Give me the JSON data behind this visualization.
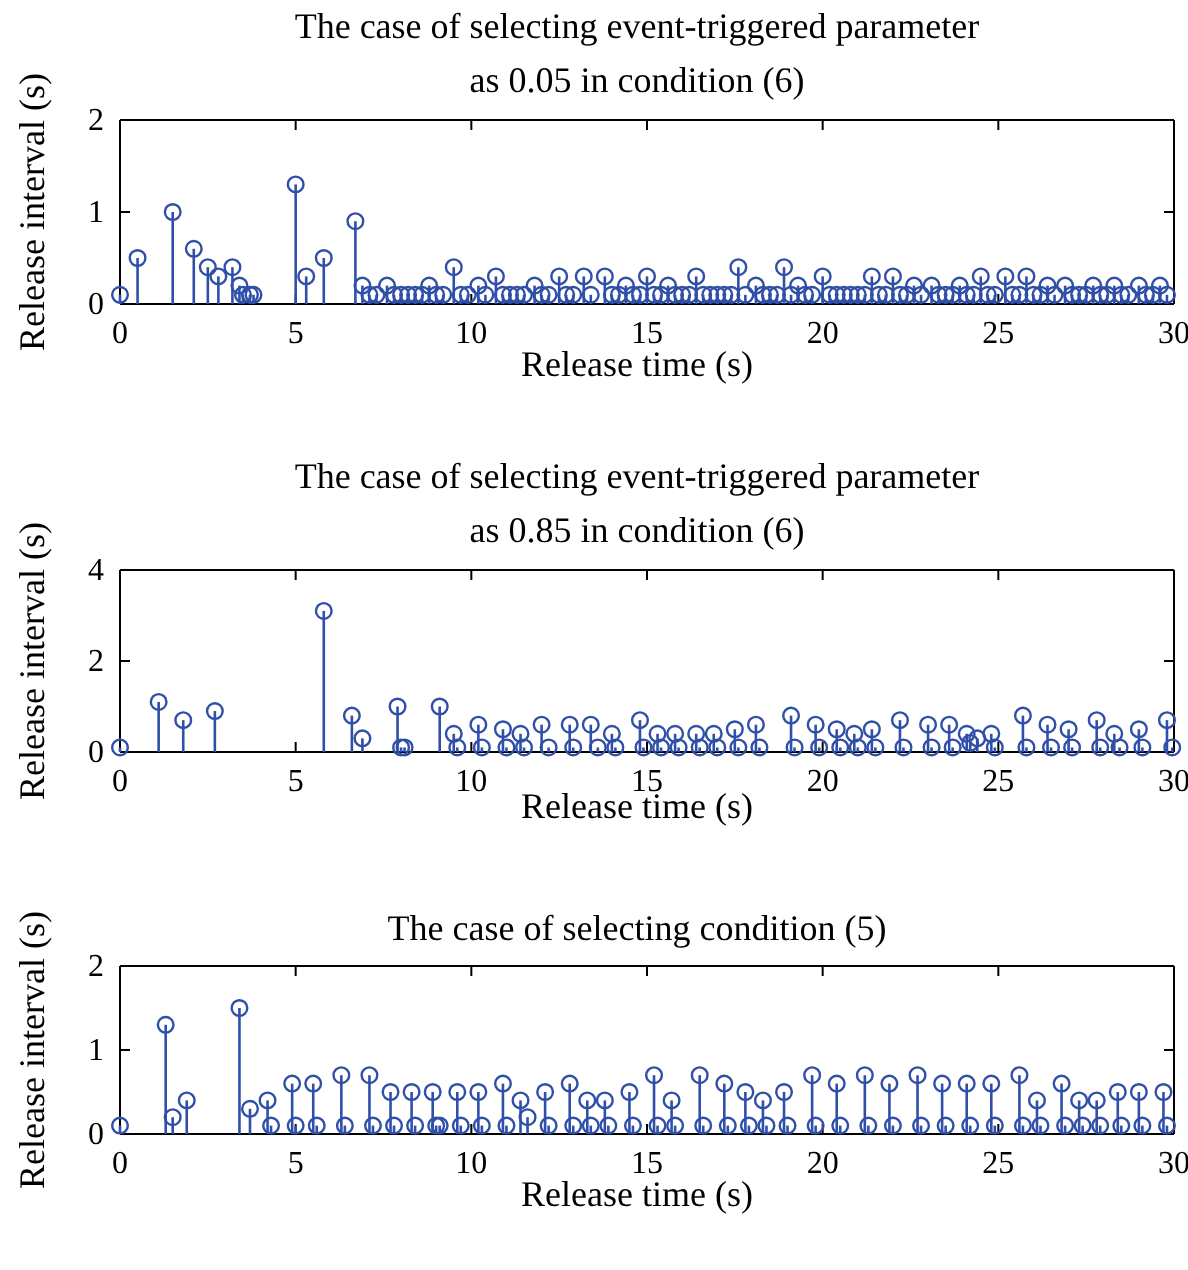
{
  "chart_data": [
    {
      "type": "lollipop",
      "title": "The case of selecting event-triggered parameter\nas 0.05 in condition (6)",
      "xlabel": "Release time (s)",
      "ylabel": "Release interval (s)",
      "xlim": [
        0,
        30
      ],
      "xticks": [
        0,
        5,
        10,
        15,
        20,
        25,
        30
      ],
      "ylim": [
        0,
        2
      ],
      "yticks": [
        0,
        1,
        2
      ],
      "marker": "circle",
      "grid": false,
      "series": [
        {
          "color": "#2f4fa8",
          "x": [
            0,
            0.5,
            1.5,
            2.1,
            2.5,
            2.8,
            3.2,
            3.4,
            3.5,
            3.7,
            3.8,
            5.0,
            5.3,
            5.8,
            6.7,
            6.9,
            7.1,
            7.3,
            7.6,
            7.8,
            8.0,
            8.2,
            8.4,
            8.6,
            8.8,
            9.0,
            9.2,
            9.5,
            9.7,
            9.9,
            10.2,
            10.4,
            10.7,
            10.9,
            11.1,
            11.3,
            11.5,
            11.8,
            12.0,
            12.2,
            12.5,
            12.7,
            12.9,
            13.2,
            13.4,
            13.8,
            14.0,
            14.2,
            14.4,
            14.6,
            14.8,
            15.0,
            15.2,
            15.4,
            15.6,
            15.8,
            16.0,
            16.2,
            16.4,
            16.6,
            16.8,
            17.0,
            17.2,
            17.4,
            17.6,
            17.8,
            18.1,
            18.3,
            18.5,
            18.7,
            18.9,
            19.1,
            19.3,
            19.5,
            19.7,
            20.0,
            20.2,
            20.4,
            20.6,
            20.8,
            21.0,
            21.2,
            21.4,
            21.6,
            21.8,
            22.0,
            22.2,
            22.4,
            22.6,
            22.8,
            23.1,
            23.3,
            23.5,
            23.7,
            23.9,
            24.1,
            24.3,
            24.5,
            24.7,
            24.9,
            25.2,
            25.4,
            25.6,
            25.8,
            26.0,
            26.2,
            26.4,
            26.6,
            26.9,
            27.1,
            27.3,
            27.5,
            27.7,
            27.9,
            28.1,
            28.3,
            28.5,
            28.7,
            29.0,
            29.2,
            29.4,
            29.6,
            29.8
          ],
          "values": [
            0.1,
            0.5,
            1.0,
            0.6,
            0.4,
            0.3,
            0.4,
            0.2,
            0.1,
            0.1,
            0.1,
            1.3,
            0.3,
            0.5,
            0.9,
            0.2,
            0.1,
            0.1,
            0.2,
            0.1,
            0.1,
            0.1,
            0.1,
            0.1,
            0.2,
            0.1,
            0.1,
            0.4,
            0.1,
            0.1,
            0.2,
            0.1,
            0.3,
            0.1,
            0.1,
            0.1,
            0.1,
            0.2,
            0.1,
            0.1,
            0.3,
            0.1,
            0.1,
            0.3,
            0.1,
            0.3,
            0.1,
            0.1,
            0.2,
            0.1,
            0.1,
            0.3,
            0.1,
            0.1,
            0.2,
            0.1,
            0.1,
            0.1,
            0.3,
            0.1,
            0.1,
            0.1,
            0.1,
            0.1,
            0.4,
            0.1,
            0.2,
            0.1,
            0.1,
            0.1,
            0.4,
            0.1,
            0.2,
            0.1,
            0.1,
            0.3,
            0.1,
            0.1,
            0.1,
            0.1,
            0.1,
            0.1,
            0.3,
            0.1,
            0.1,
            0.3,
            0.1,
            0.1,
            0.2,
            0.1,
            0.2,
            0.1,
            0.1,
            0.1,
            0.2,
            0.1,
            0.1,
            0.3,
            0.1,
            0.1,
            0.3,
            0.1,
            0.1,
            0.3,
            0.1,
            0.1,
            0.2,
            0.1,
            0.2,
            0.1,
            0.1,
            0.1,
            0.2,
            0.1,
            0.1,
            0.2,
            0.1,
            0.1,
            0.2,
            0.1,
            0.1,
            0.2,
            0.1
          ]
        }
      ]
    },
    {
      "type": "lollipop",
      "title": "The case of selecting event-triggered parameter\nas 0.85 in condition (6)",
      "xlabel": "Release time (s)",
      "ylabel": "Release interval (s)",
      "xlim": [
        0,
        30
      ],
      "xticks": [
        0,
        5,
        10,
        15,
        20,
        25,
        30
      ],
      "ylim": [
        0,
        4
      ],
      "yticks": [
        0,
        2,
        4
      ],
      "marker": "circle",
      "grid": false,
      "series": [
        {
          "color": "#2f4fa8",
          "x": [
            0,
            1.1,
            1.8,
            2.7,
            5.8,
            6.6,
            6.9,
            7.9,
            8.0,
            8.1,
            9.1,
            9.5,
            9.6,
            10.2,
            10.3,
            10.9,
            11.0,
            11.4,
            11.5,
            12.0,
            12.2,
            12.8,
            12.9,
            13.4,
            13.6,
            14.0,
            14.1,
            14.8,
            14.9,
            15.3,
            15.4,
            15.8,
            15.9,
            16.4,
            16.5,
            16.9,
            17.0,
            17.5,
            17.6,
            18.1,
            18.2,
            19.1,
            19.2,
            19.8,
            19.9,
            20.4,
            20.5,
            20.9,
            21.0,
            21.4,
            21.5,
            22.2,
            22.3,
            23.0,
            23.1,
            23.6,
            23.7,
            24.1,
            24.2,
            24.4,
            24.8,
            24.9,
            25.7,
            25.8,
            26.4,
            26.5,
            27.0,
            27.1,
            27.8,
            27.9,
            28.3,
            28.45,
            29.0,
            29.1,
            29.8,
            29.95
          ],
          "values": [
            0.1,
            1.1,
            0.7,
            0.9,
            3.1,
            0.8,
            0.3,
            1.0,
            0.1,
            0.1,
            1.0,
            0.4,
            0.1,
            0.6,
            0.1,
            0.5,
            0.1,
            0.4,
            0.1,
            0.6,
            0.1,
            0.6,
            0.1,
            0.6,
            0.1,
            0.4,
            0.1,
            0.7,
            0.1,
            0.4,
            0.1,
            0.4,
            0.1,
            0.4,
            0.1,
            0.4,
            0.1,
            0.5,
            0.1,
            0.6,
            0.1,
            0.8,
            0.1,
            0.6,
            0.1,
            0.5,
            0.1,
            0.4,
            0.1,
            0.5,
            0.1,
            0.7,
            0.1,
            0.6,
            0.1,
            0.6,
            0.1,
            0.4,
            0.2,
            0.3,
            0.4,
            0.1,
            0.8,
            0.1,
            0.6,
            0.1,
            0.5,
            0.1,
            0.7,
            0.1,
            0.4,
            0.1,
            0.5,
            0.1,
            0.7,
            0.1
          ]
        }
      ]
    },
    {
      "type": "lollipop",
      "title": "The case of selecting condition (5)",
      "xlabel": "Release time (s)",
      "ylabel": "Release interval (s)",
      "xlim": [
        0,
        30
      ],
      "xticks": [
        0,
        5,
        10,
        15,
        20,
        25,
        30
      ],
      "ylim": [
        0,
        2
      ],
      "yticks": [
        0,
        1,
        2
      ],
      "marker": "circle",
      "grid": false,
      "series": [
        {
          "color": "#2f4fa8",
          "x": [
            0,
            1.3,
            1.5,
            1.9,
            3.4,
            3.7,
            4.2,
            4.3,
            4.9,
            5.0,
            5.5,
            5.6,
            6.3,
            6.4,
            7.1,
            7.2,
            7.7,
            7.8,
            8.3,
            8.4,
            8.9,
            9.0,
            9.1,
            9.6,
            9.7,
            10.2,
            10.3,
            10.9,
            11.0,
            11.4,
            11.6,
            12.1,
            12.2,
            12.8,
            12.9,
            13.3,
            13.4,
            13.8,
            13.9,
            14.5,
            14.6,
            15.2,
            15.3,
            15.7,
            15.8,
            16.5,
            16.6,
            17.2,
            17.3,
            17.8,
            17.9,
            18.3,
            18.4,
            18.9,
            19.0,
            19.7,
            19.8,
            20.4,
            20.5,
            21.2,
            21.3,
            21.9,
            22.0,
            22.7,
            22.8,
            23.4,
            23.5,
            24.1,
            24.2,
            24.8,
            24.9,
            25.6,
            25.7,
            26.1,
            26.2,
            26.8,
            26.9,
            27.3,
            27.4,
            27.8,
            27.9,
            28.4,
            28.5,
            29.0,
            29.1,
            29.7,
            29.8
          ],
          "values": [
            0.1,
            1.3,
            0.2,
            0.4,
            1.5,
            0.3,
            0.4,
            0.1,
            0.6,
            0.1,
            0.6,
            0.1,
            0.7,
            0.1,
            0.7,
            0.1,
            0.5,
            0.1,
            0.5,
            0.1,
            0.5,
            0.1,
            0.1,
            0.5,
            0.1,
            0.5,
            0.1,
            0.6,
            0.1,
            0.4,
            0.2,
            0.5,
            0.1,
            0.6,
            0.1,
            0.4,
            0.1,
            0.4,
            0.1,
            0.5,
            0.1,
            0.7,
            0.1,
            0.4,
            0.1,
            0.7,
            0.1,
            0.6,
            0.1,
            0.5,
            0.1,
            0.4,
            0.1,
            0.5,
            0.1,
            0.7,
            0.1,
            0.6,
            0.1,
            0.7,
            0.1,
            0.6,
            0.1,
            0.7,
            0.1,
            0.6,
            0.1,
            0.6,
            0.1,
            0.6,
            0.1,
            0.7,
            0.1,
            0.4,
            0.1,
            0.6,
            0.1,
            0.4,
            0.1,
            0.4,
            0.1,
            0.5,
            0.1,
            0.5,
            0.1,
            0.5,
            0.1
          ]
        }
      ]
    }
  ]
}
